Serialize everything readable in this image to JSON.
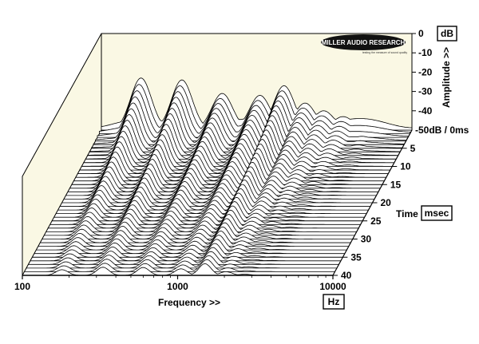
{
  "chart_data": {
    "type": "waterfall",
    "xlabel": "Frequency >>",
    "x_unit": "Hz",
    "x_scale": "log",
    "xlim": [
      100,
      10000
    ],
    "x_ticks": [
      "100",
      "1000",
      "10000"
    ],
    "ylabel": "Amplitude >>",
    "y_unit": "dB",
    "ylim": [
      -50,
      0
    ],
    "y_ticks": [
      "0",
      "-10",
      "-20",
      "-30",
      "-40"
    ],
    "y_floor_label": "-50dB / 0ms",
    "zlabel": "Time",
    "z_unit": "msec",
    "zlim": [
      0,
      40
    ],
    "z_ticks": [
      "5",
      "10",
      "15",
      "20",
      "25",
      "30",
      "35",
      "40"
    ],
    "slice_count": 41,
    "peaks": [
      {
        "freq_hz": 180,
        "level_db": -23,
        "decay_ms": 18
      },
      {
        "freq_hz": 330,
        "level_db": -24,
        "decay_ms": 22
      },
      {
        "freq_hz": 600,
        "level_db": -31,
        "decay_ms": 26
      },
      {
        "freq_hz": 1050,
        "level_db": -32,
        "decay_ms": 24
      },
      {
        "freq_hz": 1500,
        "level_db": -27,
        "decay_ms": 30
      },
      {
        "freq_hz": 2050,
        "level_db": -36,
        "decay_ms": 20
      },
      {
        "freq_hz": 2700,
        "level_db": -40,
        "decay_ms": 14
      },
      {
        "freq_hz": 3600,
        "level_db": -43,
        "decay_ms": 10
      },
      {
        "freq_hz": 5200,
        "level_db": -46,
        "decay_ms": 6
      }
    ],
    "logo": {
      "text": "MILLER AUDIO RESEARCH",
      "tagline": "testing the measure of sound quality"
    },
    "colors": {
      "back_panel": "#faf8e4",
      "ink": "#000000"
    }
  }
}
